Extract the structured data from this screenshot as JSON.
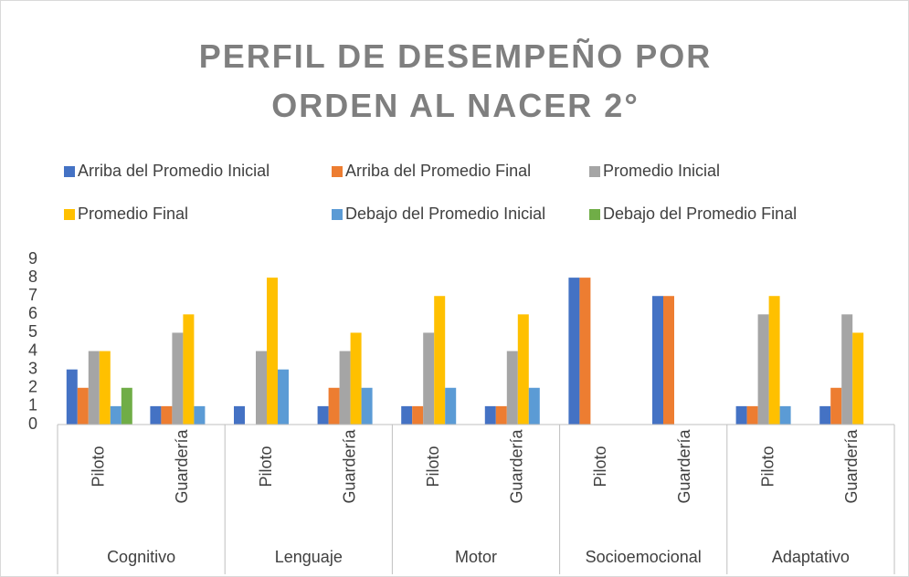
{
  "chart_data": {
    "type": "bar",
    "title": "PERFIL DE DESEMPEÑO POR ORDEN AL NACER 2°",
    "groups": [
      "Cognitivo",
      "Lenguaje",
      "Motor",
      "Socioemocional",
      "Adaptativo"
    ],
    "categories": [
      "Piloto",
      "Guardería",
      "Piloto",
      "Guardería",
      "Piloto",
      "Guardería",
      "Piloto",
      "Guardería",
      "Piloto",
      "Guardería"
    ],
    "series": [
      {
        "name": "Arriba del Promedio Inicial",
        "color": "#4472c4",
        "values": [
          3,
          1,
          1,
          1,
          1,
          1,
          8,
          7,
          1,
          1
        ]
      },
      {
        "name": "Arriba del Promedio Final",
        "color": "#ed7d31",
        "values": [
          2,
          1,
          0,
          2,
          1,
          1,
          8,
          7,
          1,
          2
        ]
      },
      {
        "name": "Promedio Inicial",
        "color": "#a5a5a5",
        "values": [
          4,
          5,
          4,
          4,
          5,
          4,
          0,
          0,
          6,
          6
        ]
      },
      {
        "name": "Promedio Final",
        "color": "#ffc000",
        "values": [
          4,
          6,
          8,
          5,
          7,
          6,
          0,
          0,
          7,
          5
        ]
      },
      {
        "name": "Debajo del Promedio Inicial",
        "color": "#5b9bd5",
        "values": [
          1,
          1,
          3,
          2,
          2,
          2,
          0,
          0,
          1,
          0
        ]
      },
      {
        "name": "Debajo del Promedio Final",
        "color": "#70ad47",
        "values": [
          2,
          0,
          0,
          0,
          0,
          0,
          0,
          0,
          0,
          0
        ]
      }
    ],
    "ylim": [
      0,
      9
    ],
    "yticks": [
      0,
      1,
      2,
      3,
      4,
      5,
      6,
      7,
      8,
      9
    ],
    "grid": false,
    "legend": "top"
  }
}
